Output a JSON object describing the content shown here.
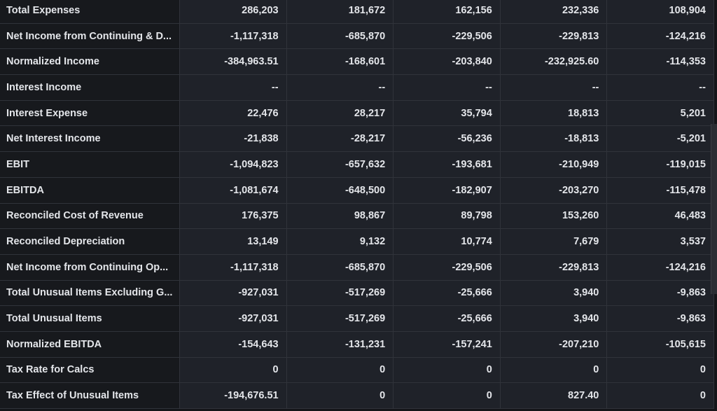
{
  "columns_count": 5,
  "rows": [
    {
      "label": "Total Expenses",
      "values": [
        "286,203",
        "181,672",
        "162,156",
        "232,336",
        "108,904"
      ]
    },
    {
      "label": "Net Income from Continuing & D...",
      "values": [
        "-1,117,318",
        "-685,870",
        "-229,506",
        "-229,813",
        "-124,216"
      ]
    },
    {
      "label": "Normalized Income",
      "values": [
        "-384,963.51",
        "-168,601",
        "-203,840",
        "-232,925.60",
        "-114,353"
      ]
    },
    {
      "label": "Interest Income",
      "values": [
        "--",
        "--",
        "--",
        "--",
        "--"
      ]
    },
    {
      "label": "Interest Expense",
      "values": [
        "22,476",
        "28,217",
        "35,794",
        "18,813",
        "5,201"
      ]
    },
    {
      "label": "Net Interest Income",
      "values": [
        "-21,838",
        "-28,217",
        "-56,236",
        "-18,813",
        "-5,201"
      ]
    },
    {
      "label": "EBIT",
      "values": [
        "-1,094,823",
        "-657,632",
        "-193,681",
        "-210,949",
        "-119,015"
      ]
    },
    {
      "label": "EBITDA",
      "values": [
        "-1,081,674",
        "-648,500",
        "-182,907",
        "-203,270",
        "-115,478"
      ]
    },
    {
      "label": "Reconciled Cost of Revenue",
      "values": [
        "176,375",
        "98,867",
        "89,798",
        "153,260",
        "46,483"
      ]
    },
    {
      "label": "Reconciled Depreciation",
      "values": [
        "13,149",
        "9,132",
        "10,774",
        "7,679",
        "3,537"
      ]
    },
    {
      "label": "Net Income from Continuing Op...",
      "values": [
        "-1,117,318",
        "-685,870",
        "-229,506",
        "-229,813",
        "-124,216"
      ]
    },
    {
      "label": "Total Unusual Items Excluding G...",
      "values": [
        "-927,031",
        "-517,269",
        "-25,666",
        "3,940",
        "-9,863"
      ]
    },
    {
      "label": "Total Unusual Items",
      "values": [
        "-927,031",
        "-517,269",
        "-25,666",
        "3,940",
        "-9,863"
      ]
    },
    {
      "label": "Normalized EBITDA",
      "values": [
        "-154,643",
        "-131,231",
        "-157,241",
        "-207,210",
        "-105,615"
      ]
    },
    {
      "label": "Tax Rate for Calcs",
      "values": [
        "0",
        "0",
        "0",
        "0",
        "0"
      ]
    },
    {
      "label": "Tax Effect of Unusual Items",
      "values": [
        "-194,676.51",
        "0",
        "0",
        "827.40",
        "0"
      ]
    }
  ]
}
